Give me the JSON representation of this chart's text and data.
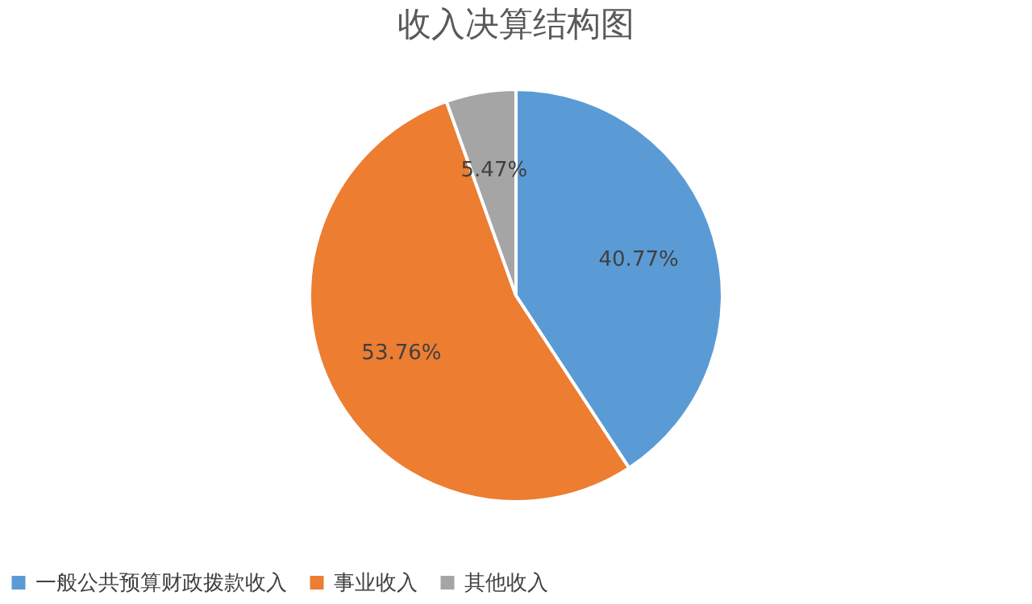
{
  "chart_data": {
    "type": "pie",
    "title": "收入决算结构图",
    "categories": [
      "一般公共预算财政拨款收入",
      "事业收入",
      "其他收入"
    ],
    "values": [
      40.77,
      53.76,
      5.47
    ],
    "colors": [
      "#5b9bd5",
      "#ed7d31",
      "#a5a5a5"
    ],
    "value_labels": [
      "40.77%",
      "53.76%",
      "5.47%"
    ],
    "legend": "bottom"
  }
}
